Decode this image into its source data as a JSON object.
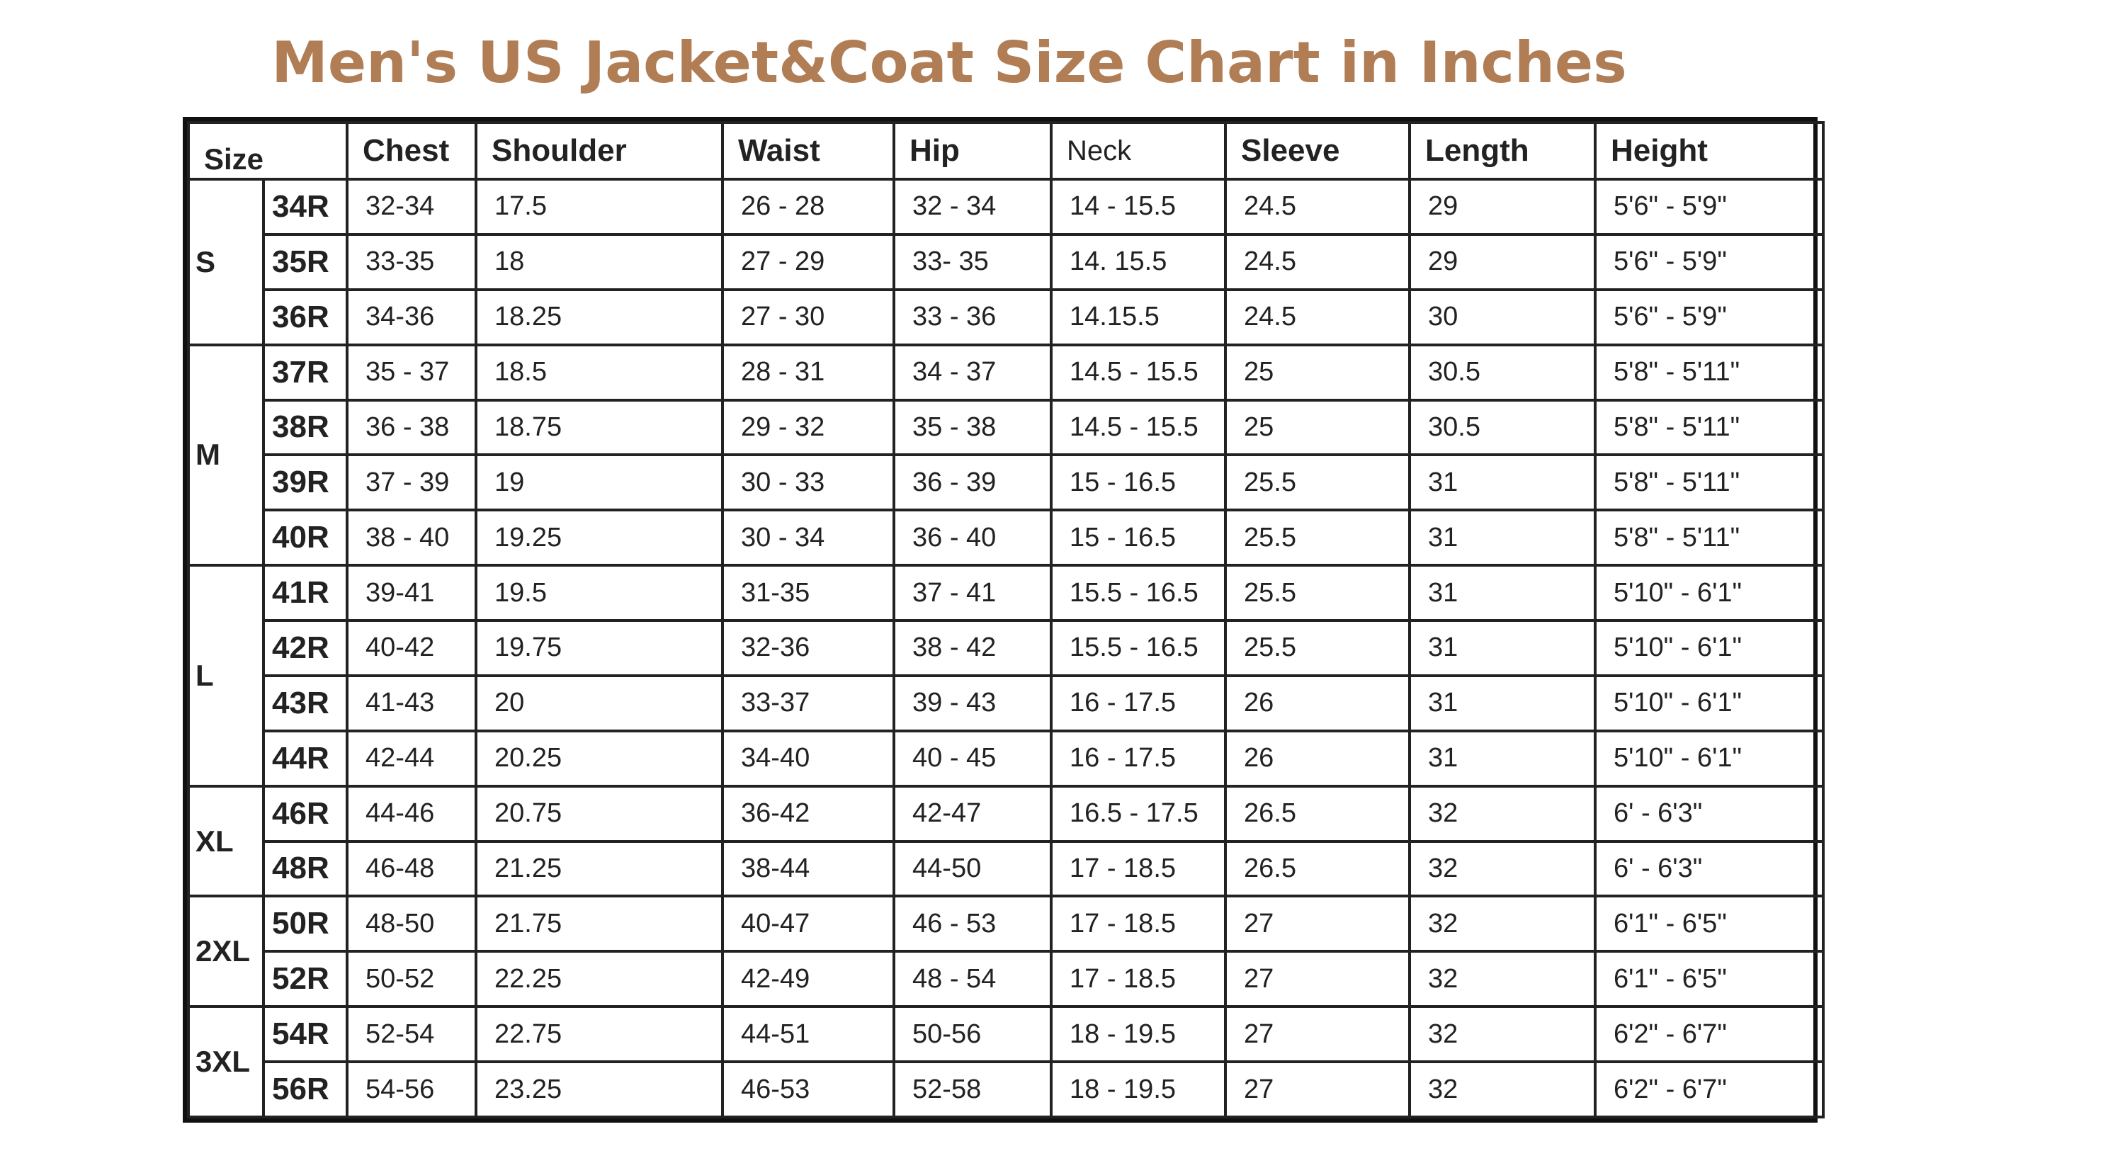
{
  "title": "Men's US Jacket&Coat Size Chart in Inches",
  "columns": {
    "size": "Size",
    "chest": "Chest",
    "shoulder": "Shoulder",
    "waist": "Waist",
    "hip": "Hip",
    "neck": "Neck",
    "sleeve": "Sleeve",
    "length": "Length",
    "height": "Height"
  },
  "groups": [
    {
      "label": "S",
      "rows": [
        {
          "code": "34R",
          "chest": "32-34",
          "shoulder": "17.5",
          "waist": "26 - 28",
          "hip": "32 - 34",
          "neck": "14 - 15.5",
          "sleeve": "24.5",
          "length": "29",
          "height": "5'6\" - 5'9\""
        },
        {
          "code": "35R",
          "chest": "33-35",
          "shoulder": "18",
          "waist": "27 - 29",
          "hip": "33- 35",
          "neck": "14. 15.5",
          "sleeve": "24.5",
          "length": "29",
          "height": "5'6\" - 5'9\""
        },
        {
          "code": "36R",
          "chest": "34-36",
          "shoulder": "18.25",
          "waist": "27 - 30",
          "hip": "33 - 36",
          "neck": "14.15.5",
          "sleeve": "24.5",
          "length": "30",
          "height": "5'6\" - 5'9\""
        }
      ]
    },
    {
      "label": "M",
      "rows": [
        {
          "code": "37R",
          "chest": "35 - 37",
          "shoulder": "18.5",
          "waist": "28 - 31",
          "hip": "34 - 37",
          "neck": "14.5 - 15.5",
          "sleeve": "25",
          "length": "30.5",
          "height": "5'8\" - 5'11\""
        },
        {
          "code": "38R",
          "chest": "36 - 38",
          "shoulder": "18.75",
          "waist": "29 - 32",
          "hip": "35 - 38",
          "neck": "14.5 - 15.5",
          "sleeve": "25",
          "length": "30.5",
          "height": "5'8\" - 5'11\""
        },
        {
          "code": "39R",
          "chest": "37 - 39",
          "shoulder": "19",
          "waist": "30 - 33",
          "hip": "36 - 39",
          "neck": "15 - 16.5",
          "sleeve": "25.5",
          "length": "31",
          "height": "5'8\" - 5'11\""
        },
        {
          "code": "40R",
          "chest": "38 - 40",
          "shoulder": "19.25",
          "waist": "30 - 34",
          "hip": "36 - 40",
          "neck": "15 - 16.5",
          "sleeve": "25.5",
          "length": "31",
          "height": "5'8\" - 5'11\""
        }
      ]
    },
    {
      "label": "L",
      "rows": [
        {
          "code": "41R",
          "chest": "39-41",
          "shoulder": "19.5",
          "waist": "31-35",
          "hip": "37 - 41",
          "neck": "15.5 - 16.5",
          "sleeve": "25.5",
          "length": "31",
          "height": "5'10\" - 6'1\""
        },
        {
          "code": "42R",
          "chest": "40-42",
          "shoulder": "19.75",
          "waist": "32-36",
          "hip": "38 - 42",
          "neck": "15.5 - 16.5",
          "sleeve": "25.5",
          "length": "31",
          "height": "5'10\" - 6'1\""
        },
        {
          "code": "43R",
          "chest": "41-43",
          "shoulder": "20",
          "waist": "33-37",
          "hip": "39 - 43",
          "neck": "16 - 17.5",
          "sleeve": "26",
          "length": "31",
          "height": "5'10\" - 6'1\""
        },
        {
          "code": "44R",
          "chest": "42-44",
          "shoulder": "20.25",
          "waist": "34-40",
          "hip": "40 - 45",
          "neck": "16 - 17.5",
          "sleeve": "26",
          "length": "31",
          "height": "5'10\" - 6'1\""
        }
      ]
    },
    {
      "label": "XL",
      "rows": [
        {
          "code": "46R",
          "chest": "44-46",
          "shoulder": "20.75",
          "waist": "36-42",
          "hip": "42-47",
          "neck": "16.5 - 17.5",
          "sleeve": "26.5",
          "length": "32",
          "height": "6' - 6'3\""
        },
        {
          "code": "48R",
          "chest": "46-48",
          "shoulder": "21.25",
          "waist": "38-44",
          "hip": "44-50",
          "neck": "17 - 18.5",
          "sleeve": "26.5",
          "length": "32",
          "height": "6' - 6'3\""
        }
      ]
    },
    {
      "label": "2XL",
      "rows": [
        {
          "code": "50R",
          "chest": "48-50",
          "shoulder": "21.75",
          "waist": "40-47",
          "hip": "46 - 53",
          "neck": "17 - 18.5",
          "sleeve": "27",
          "length": "32",
          "height": "6'1\" - 6'5\""
        },
        {
          "code": "52R",
          "chest": "50-52",
          "shoulder": "22.25",
          "waist": "42-49",
          "hip": "48 - 54",
          "neck": "17 - 18.5",
          "sleeve": "27",
          "length": "32",
          "height": "6'1\" - 6'5\""
        }
      ]
    },
    {
      "label": "3XL",
      "rows": [
        {
          "code": "54R",
          "chest": "52-54",
          "shoulder": "22.75",
          "waist": "44-51",
          "hip": "50-56",
          "neck": "18 - 19.5",
          "sleeve": "27",
          "length": "32",
          "height": "6'2\" - 6'7\""
        },
        {
          "code": "56R",
          "chest": "54-56",
          "shoulder": "23.25",
          "waist": "46-53",
          "hip": "52-58",
          "neck": "18 - 19.5",
          "sleeve": "27",
          "length": "32",
          "height": "6'2\" - 6'7\""
        }
      ]
    }
  ],
  "colors": {
    "title": "#b07d55",
    "border": "#222222"
  }
}
